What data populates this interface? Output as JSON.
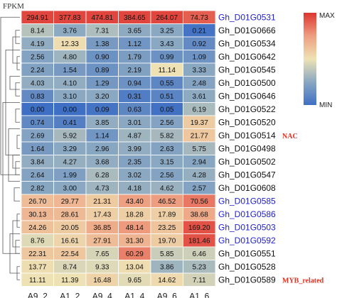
{
  "figure_label": "FPKM",
  "legend": {
    "max_label": "MAX",
    "min_label": "MIN"
  },
  "colors": {
    "low": "#3f6fc4",
    "mid_low": "#8aa8c2",
    "mid": "#eee2b4",
    "mid_high": "#ee9e80",
    "high": "#dd3530",
    "highlight_gene": "#2222cc",
    "normal_gene": "#111111",
    "family_label": "#e03020"
  },
  "family_labels": [
    {
      "text": "NAC",
      "row": 9
    },
    {
      "text": "MYB_related",
      "row": 20
    }
  ],
  "chart_data": {
    "type": "heatmap",
    "columns": [
      "A9_2",
      "A1_2",
      "A9_4",
      "A1_4",
      "A9_6",
      "A1_6"
    ],
    "rows": [
      {
        "gene": "Gh_D01G0531",
        "highlight": true,
        "values": [
          "294.91",
          "377.83",
          "474.81",
          "384.65",
          "264.07",
          "74.73"
        ],
        "levels": [
          0.96,
          0.96,
          0.96,
          0.96,
          0.96,
          0.9
        ]
      },
      {
        "gene": "Gh_D01G0666",
        "highlight": false,
        "values": [
          "8.14",
          "3.76",
          "7.31",
          "3.65",
          "3.25",
          "0.21"
        ],
        "levels": [
          0.36,
          0.26,
          0.34,
          0.26,
          0.25,
          0.02
        ]
      },
      {
        "gene": "Gh_D01G0534",
        "highlight": false,
        "values": [
          "4.19",
          "12.33",
          "1.38",
          "1.12",
          "3.43",
          "0.92"
        ],
        "levels": [
          0.27,
          0.52,
          0.19,
          0.17,
          0.25,
          0.12
        ]
      },
      {
        "gene": "Gh_D01G0642",
        "highlight": false,
        "values": [
          "2.56",
          "4.80",
          "0.90",
          "1.79",
          "0.99",
          "1.09"
        ],
        "levels": [
          0.23,
          0.3,
          0.15,
          0.2,
          0.15,
          0.16
        ]
      },
      {
        "gene": "Gh_D01G0545",
        "highlight": false,
        "values": [
          "2.24",
          "1.54",
          "0.89",
          "2.19",
          "11.14",
          "3.33"
        ],
        "levels": [
          0.22,
          0.19,
          0.15,
          0.22,
          0.5,
          0.25
        ]
      },
      {
        "gene": "Gh_D01G0500",
        "highlight": false,
        "values": [
          "4.03",
          "4.10",
          "1.29",
          "0.94",
          "0.55",
          "2.48"
        ],
        "levels": [
          0.27,
          0.27,
          0.18,
          0.15,
          0.1,
          0.23
        ]
      },
      {
        "gene": "Gh_D01G0646",
        "highlight": false,
        "values": [
          "0.83",
          "3.10",
          "3.20",
          "0.31",
          "0.51",
          "3.61"
        ],
        "levels": [
          0.12,
          0.25,
          0.25,
          0.06,
          0.09,
          0.26
        ]
      },
      {
        "gene": "Gh_D01G0522",
        "highlight": false,
        "values": [
          "0.00",
          "0.00",
          "0.09",
          "0.63",
          "0.05",
          "6.19"
        ],
        "levels": [
          0.0,
          0.0,
          0.02,
          0.1,
          0.01,
          0.33
        ]
      },
      {
        "gene": "Gh_D01G0520",
        "highlight": false,
        "values": [
          "0.74",
          "0.41",
          "3.85",
          "3.01",
          "2.56",
          "19.37"
        ],
        "levels": [
          0.11,
          0.07,
          0.27,
          0.25,
          0.23,
          0.58
        ]
      },
      {
        "gene": "Gh_D01G0514",
        "highlight": false,
        "values": [
          "2.69",
          "5.92",
          "1.14",
          "4.87",
          "5.82",
          "21.77"
        ],
        "levels": [
          0.23,
          0.32,
          0.17,
          0.3,
          0.32,
          0.6
        ]
      },
      {
        "gene": "Gh_D01G0498",
        "highlight": false,
        "values": [
          "1.64",
          "3.29",
          "2.96",
          "3.99",
          "2.63",
          "5.75"
        ],
        "levels": [
          0.19,
          0.25,
          0.24,
          0.27,
          0.23,
          0.32
        ]
      },
      {
        "gene": "Gh_D01G0502",
        "highlight": false,
        "values": [
          "3.84",
          "4.27",
          "3.68",
          "2.35",
          "3.15",
          "2.94"
        ],
        "levels": [
          0.27,
          0.28,
          0.27,
          0.23,
          0.25,
          0.24
        ]
      },
      {
        "gene": "Gh_D01G0547",
        "highlight": false,
        "values": [
          "2.64",
          "1.99",
          "6.28",
          "3.02",
          "2.56",
          "4.28"
        ],
        "levels": [
          0.23,
          0.21,
          0.33,
          0.25,
          0.23,
          0.28
        ]
      },
      {
        "gene": "Gh_D01G0608",
        "highlight": false,
        "values": [
          "2.82",
          "3.00",
          "4.73",
          "4.18",
          "4.62",
          "2.57"
        ],
        "levels": [
          0.24,
          0.25,
          0.3,
          0.28,
          0.29,
          0.23
        ]
      },
      {
        "gene": "Gh_D01G0585",
        "highlight": true,
        "values": [
          "26.70",
          "29.77",
          "21.31",
          "43.40",
          "46.52",
          "70.56"
        ],
        "levels": [
          0.64,
          0.66,
          0.59,
          0.74,
          0.75,
          0.84
        ]
      },
      {
        "gene": "Gh_D01G0586",
        "highlight": true,
        "values": [
          "30.13",
          "28.61",
          "17.43",
          "18.28",
          "17.89",
          "38.68"
        ],
        "levels": [
          0.66,
          0.65,
          0.57,
          0.57,
          0.57,
          0.71
        ]
      },
      {
        "gene": "Gh_D01G0503",
        "highlight": true,
        "values": [
          "24.26",
          "20.05",
          "36.85",
          "48.14",
          "23.25",
          "169.20"
        ],
        "levels": [
          0.62,
          0.59,
          0.7,
          0.76,
          0.61,
          0.93
        ]
      },
      {
        "gene": "Gh_D01G0592",
        "highlight": true,
        "values": [
          "8.76",
          "16.61",
          "27.91",
          "31.30",
          "19.70",
          "181.46"
        ],
        "levels": [
          0.46,
          0.55,
          0.64,
          0.67,
          0.58,
          0.93
        ]
      },
      {
        "gene": "Gh_D01G0551",
        "highlight": false,
        "values": [
          "22.31",
          "22.54",
          "7.65",
          "60.29",
          "5.85",
          "6.46"
        ],
        "levels": [
          0.6,
          0.6,
          0.44,
          0.82,
          0.41,
          0.42
        ]
      },
      {
        "gene": "Gh_D01G0528",
        "highlight": false,
        "values": [
          "13.77",
          "8.74",
          "9.33",
          "13.04",
          "3.86",
          "5.23"
        ],
        "levels": [
          0.52,
          0.45,
          0.46,
          0.52,
          0.3,
          0.33
        ]
      },
      {
        "gene": "Gh_D01G0589",
        "highlight": false,
        "values": [
          "11.11",
          "11.39",
          "16.48",
          "9.65",
          "14.62",
          "7.11"
        ],
        "levels": [
          0.5,
          0.5,
          0.56,
          0.47,
          0.53,
          0.43
        ]
      }
    ]
  }
}
